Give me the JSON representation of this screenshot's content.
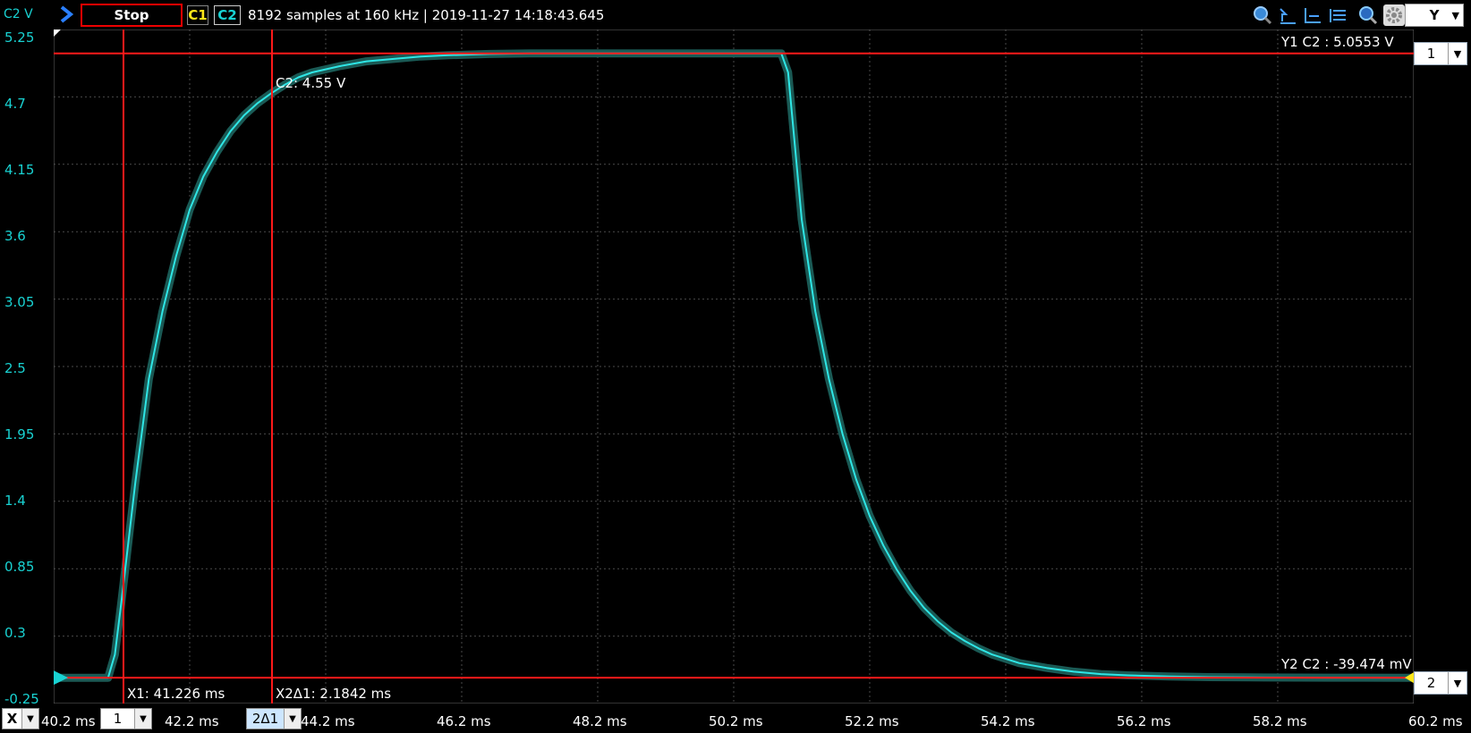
{
  "toolbar": {
    "channel_axis_label": "C2 V",
    "stop_label": "Stop",
    "c1_label": "C1",
    "c2_label": "C2",
    "status": "8192 samples at 160 kHz | 2019-11-27 14:18:43.645",
    "y_button_label": "Y",
    "icons": [
      "zoom-icon",
      "cursor-up-icon",
      "cursor-step-icon",
      "cursor-list-icon",
      "magnifier-icon",
      "gear-icon"
    ]
  },
  "right_panel": {
    "cursor1_value": "1",
    "cursor2_value": "2"
  },
  "bottom": {
    "x_button": "X",
    "x_cursor1_select": "1",
    "x_cursor2_select": "2Δ1"
  },
  "readouts": {
    "y1": "Y1 C2 : 5.0553 V",
    "y2": "Y2 C2 : -39.474 mV",
    "x1": "X1: 41.226 ms",
    "x2": "X2Δ1: 2.1842 ms",
    "marker": "C2: 4.55 V"
  },
  "colors": {
    "trace": "#2ee6e6",
    "trace_shadow": "#1a5a55",
    "cursor": "#ff1a1a",
    "c1": "#ffe61a",
    "c2": "#19d2d2",
    "grid": "#4a4a4a"
  },
  "chart_data": {
    "type": "line",
    "title": "",
    "xlabel": "",
    "ylabel": "C2 V",
    "x_unit": "ms",
    "y_unit": "V",
    "xlim": [
      40.2,
      60.2
    ],
    "ylim": [
      -0.25,
      5.25
    ],
    "x_ticks": [
      "40.2 ms",
      "42.2 ms",
      "44.2 ms",
      "46.2 ms",
      "48.2 ms",
      "50.2 ms",
      "52.2 ms",
      "54.2 ms",
      "56.2 ms",
      "58.2 ms",
      "60.2 ms"
    ],
    "y_ticks": [
      "5.25",
      "4.7",
      "4.15",
      "3.6",
      "3.05",
      "2.5",
      "1.95",
      "1.4",
      "0.85",
      "0.3",
      "-0.25"
    ],
    "series": [
      {
        "x": [
          40.2,
          41.0,
          41.1,
          41.2,
          41.4,
          41.6,
          41.8,
          42.0,
          42.2,
          42.4,
          42.6,
          42.8,
          43.0,
          43.2,
          43.4,
          43.6,
          43.8,
          44.0,
          44.4,
          44.8,
          45.2,
          45.6,
          46.0,
          46.6,
          47.2,
          48.0,
          49.0,
          50.0,
          50.9,
          51.0,
          51.1,
          51.2,
          51.4,
          51.6,
          51.8,
          52.0,
          52.2,
          52.4,
          52.6,
          52.8,
          53.0,
          53.2,
          53.4,
          53.6,
          53.8,
          54.0,
          54.4,
          54.8,
          55.2,
          55.6,
          56.0,
          56.6,
          57.2,
          58.0,
          59.0,
          60.2
        ],
        "y": [
          -0.04,
          -0.04,
          0.15,
          0.6,
          1.55,
          2.4,
          2.95,
          3.4,
          3.78,
          4.05,
          4.25,
          4.42,
          4.55,
          4.65,
          4.73,
          4.8,
          4.86,
          4.9,
          4.95,
          4.99,
          5.01,
          5.03,
          5.04,
          5.05,
          5.055,
          5.055,
          5.055,
          5.055,
          5.055,
          4.9,
          4.3,
          3.7,
          2.95,
          2.4,
          1.95,
          1.58,
          1.28,
          1.04,
          0.84,
          0.67,
          0.53,
          0.42,
          0.33,
          0.26,
          0.2,
          0.15,
          0.08,
          0.04,
          0.01,
          -0.01,
          -0.02,
          -0.03,
          -0.035,
          -0.038,
          -0.039,
          -0.04
        ]
      }
    ],
    "cursors": {
      "x1": 41.226,
      "x2": 43.4102,
      "y1": 5.0553,
      "y2": -0.039474
    },
    "grid": true
  }
}
